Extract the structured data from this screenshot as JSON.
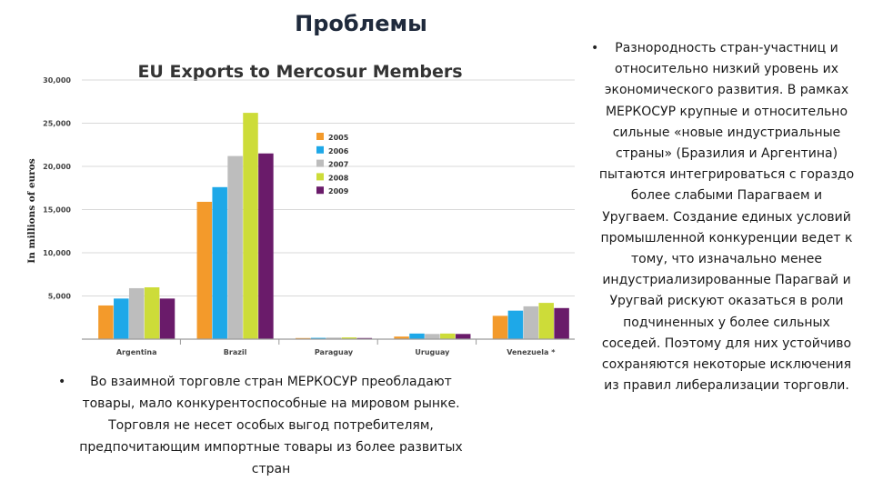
{
  "slide": {
    "title": "Проблемы",
    "bullet_left": "Во взаимной торговле стран МЕРКОСУР преобладают товары, мало конкурентоспособные на мировом рынке. Торговля не несет особых выгод потребителям, предпочитающим импортные товары из более развитых стран",
    "bullet_right": "Разнородность стран-участниц и относительно низкий уровень их экономического развития. В рамках МЕРКОСУР крупные и относительно сильные «новые индустриальные страны» (Бразилия и Аргентина) пытаются интегрироваться с гораздо более слабыми Парагваем и Уругваем. Создание единых условий промышленной конкуренции ведет к тому, что изначально менее индустриализированные Парагвай и Уругвай рискуют оказаться в роли подчиненных у более сильных соседей. Поэтому для них устойчиво сохраняются некоторые исключения из правил либерализации торговли.",
    "bullet_symbol": "•"
  },
  "chart_data": {
    "type": "bar",
    "title": "EU Exports to Mercosur Members",
    "xlabel": "",
    "ylabel": "In millions of euros",
    "categories": [
      "Argentina",
      "Brazil",
      "Paraguay",
      "Uruguay",
      "Venezuela *"
    ],
    "ylim": [
      0,
      30000
    ],
    "yticks": [
      {
        "value": 5000,
        "label": "5,000"
      },
      {
        "value": 10000,
        "label": "10,000"
      },
      {
        "value": 15000,
        "label": "15,000"
      },
      {
        "value": 20000,
        "label": "20,000"
      },
      {
        "value": 25000,
        "label": "25,000"
      },
      {
        "value": 30000,
        "label": "30,000"
      }
    ],
    "grid": true,
    "legend_position": "right",
    "series": [
      {
        "name": "2005",
        "color": "#F39A2B",
        "values": [
          3900,
          15900,
          100,
          300,
          2700
        ]
      },
      {
        "name": "2006",
        "color": "#1EA8E8",
        "values": [
          4700,
          17600,
          150,
          650,
          3300
        ]
      },
      {
        "name": "2007",
        "color": "#BDBDBD",
        "values": [
          5900,
          21200,
          180,
          600,
          3800
        ]
      },
      {
        "name": "2008",
        "color": "#CDDC39",
        "values": [
          6000,
          26200,
          200,
          650,
          4200
        ]
      },
      {
        "name": "2009",
        "color": "#6A1B6A",
        "values": [
          4700,
          21500,
          130,
          600,
          3600
        ]
      }
    ]
  }
}
